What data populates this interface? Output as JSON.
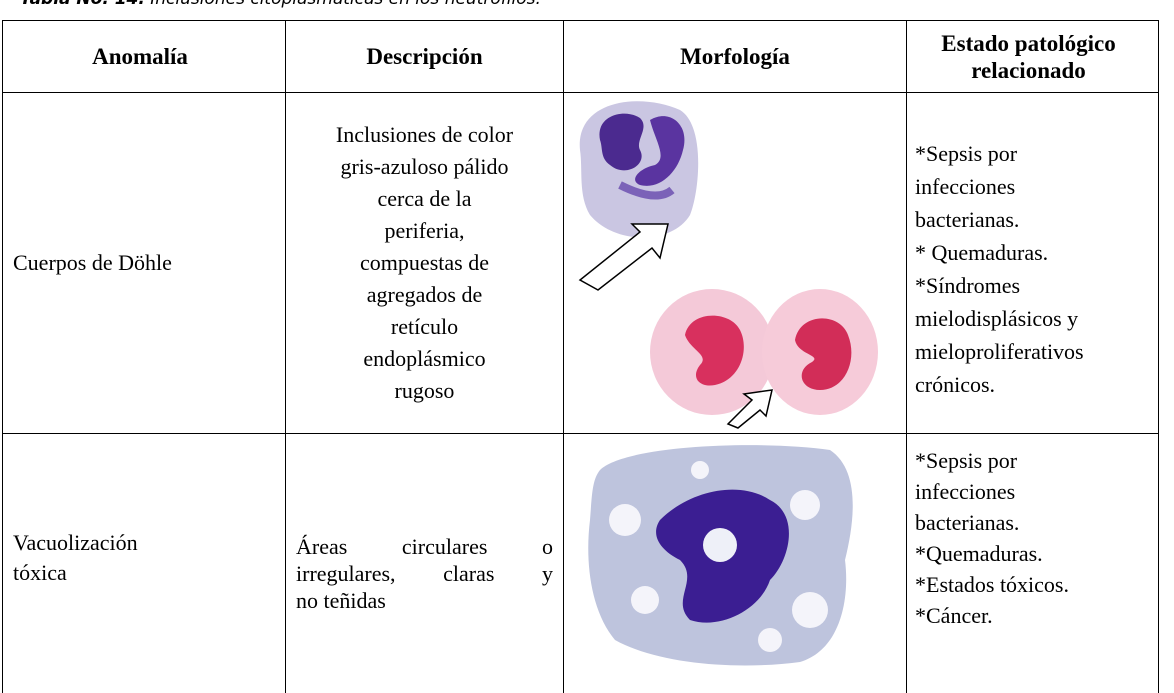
{
  "caption": {
    "label": "Tabla No. 14.",
    "text": "Inclusiones citoplasmáticas en los neutrófilos."
  },
  "table": {
    "header": [
      "Anomalía",
      "Descripción",
      "Morfología",
      "Estado patológico relacionado"
    ],
    "rows": [
      {
        "anomaly": [
          "Cuerpos de Döhle"
        ],
        "description": [
          "Inclusiones de color",
          "gris-azuloso pálido",
          "cerca de la",
          "periferia,",
          "compuestas de",
          "agregados de",
          "retículo",
          "endoplásmico",
          "rugoso"
        ],
        "conditions": [
          "*Sepsis por",
          "infecciones",
          "bacterianas.",
          "* Quemaduras.",
          "*Síndromes",
          "mielodisplásicos y",
          "mieloproliferativos",
          "crónicos."
        ]
      },
      {
        "anomaly": [
          "Vacuolización",
          "tóxica"
        ],
        "description": [
          "Áreas circulares o",
          "irregulares, claras y",
          "no teñidas"
        ],
        "conditions": [
          "*Sepsis por",
          "infecciones",
          "bacterianas.",
          "*Quemaduras.",
          "*Estados tóxicos.",
          "*Cáncer."
        ]
      }
    ]
  }
}
